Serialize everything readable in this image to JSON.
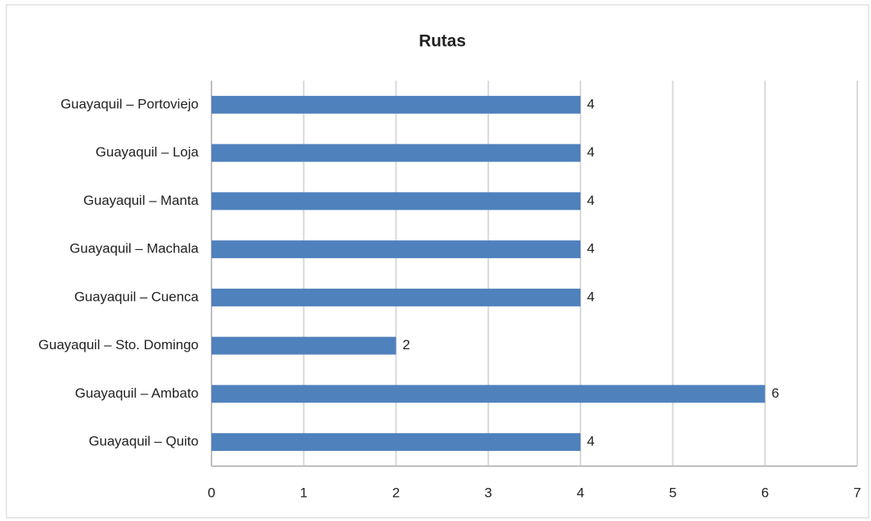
{
  "chart_data": {
    "type": "bar",
    "orientation": "horizontal",
    "title": "Rutas",
    "categories": [
      "Guayaquil – Quito",
      "Guayaquil – Ambato",
      "Guayaquil – Sto. Domingo",
      "Guayaquil – Cuenca",
      "Guayaquil – Machala",
      "Guayaquil – Manta",
      "Guayaquil – Loja",
      "Guayaquil – Portoviejo"
    ],
    "values": [
      4,
      6,
      2,
      4,
      4,
      4,
      4,
      4
    ],
    "color": "#4f81bd",
    "xlim": [
      0,
      7
    ],
    "xticks": [
      0,
      1,
      2,
      3,
      4,
      5,
      6,
      7
    ],
    "grid": true
  }
}
